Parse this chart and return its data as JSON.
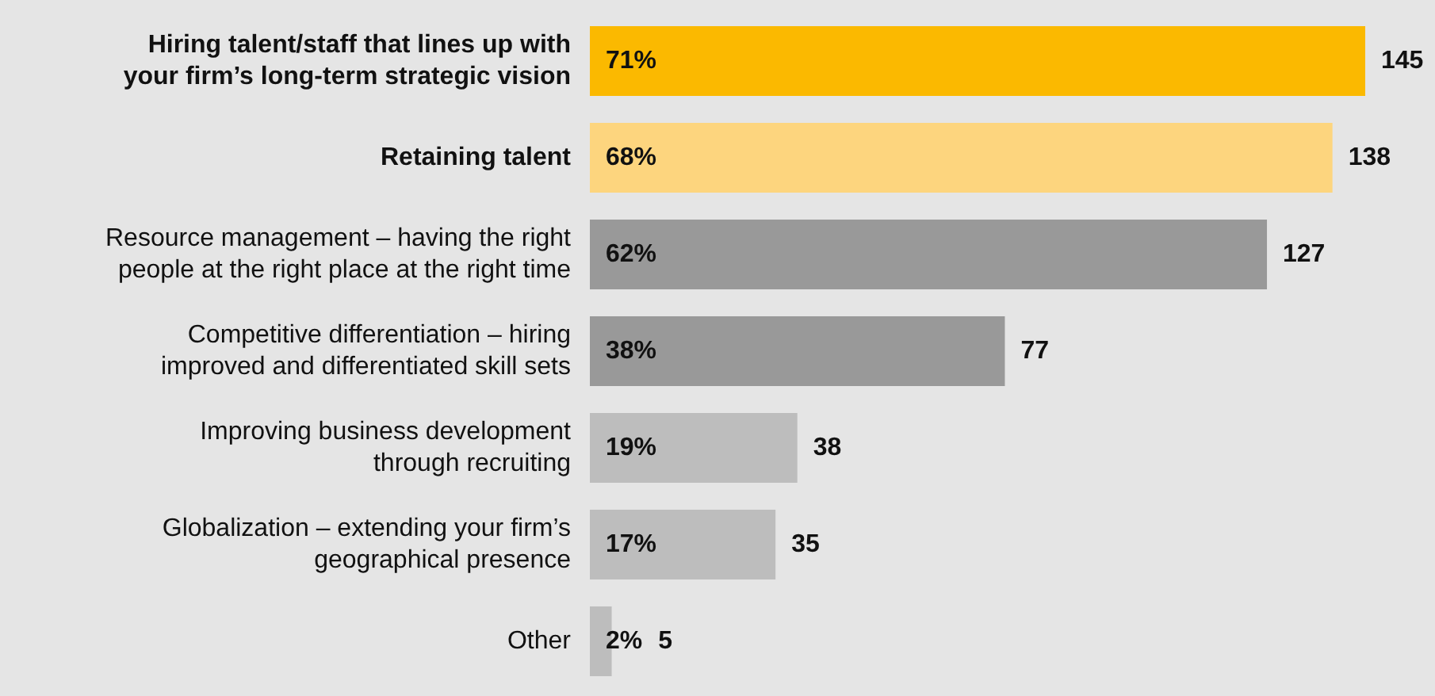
{
  "chart_data": {
    "type": "bar",
    "orientation": "horizontal",
    "categories": [
      "Hiring talent/staff that lines up with\nyour firm’s long-term strategic vision",
      "Retaining talent",
      "Resource management – having the right\npeople at the right place at the right time",
      "Competitive differentiation – hiring\nimproved and differentiated skill sets",
      "Improving business development\nthrough recruiting",
      "Globalization – extending your firm’s\ngeographical presence",
      "Other"
    ],
    "values": [
      71,
      68,
      62,
      38,
      19,
      17,
      2
    ],
    "colors": [
      "#fbb900",
      "#fdd57e",
      "#999999",
      "#999999",
      "#bdbdbd",
      "#bdbdbd",
      "#bdbdbd"
    ],
    "value_labels": [
      "71%",
      "68%",
      "62%",
      "38%",
      "19%",
      "17%",
      "2%"
    ],
    "annotations": [
      {
        "text": "145",
        "x": 71,
        "y": "Hiring talent/staff that lines up with\nyour firm’s long-term strategic vision"
      },
      {
        "text": "138",
        "x": 68,
        "y": "Retaining talent"
      },
      {
        "text": "127",
        "x": 62,
        "y": "Resource management – having the right\npeople at the right place at the right time"
      },
      {
        "text": "77",
        "x": 38,
        "y": "Competitive differentiation – hiring\nimproved and differentiated skill sets"
      },
      {
        "text": "38",
        "x": 19,
        "y": "Improving business development\nthrough recruiting"
      },
      {
        "text": "35",
        "x": 17,
        "y": "Globalization – extending your firm’s\ngeographical presence"
      },
      {
        "text": "5",
        "x": 2,
        "y": "Other"
      }
    ]
  }
}
